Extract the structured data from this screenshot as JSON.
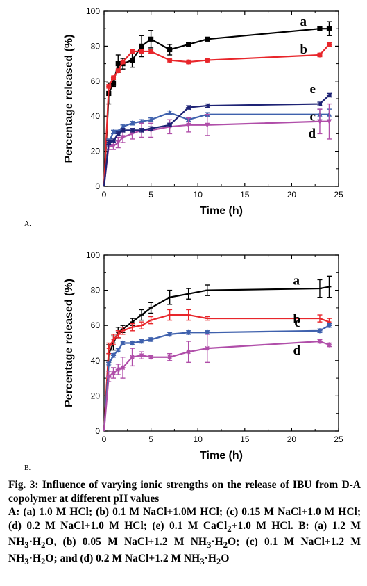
{
  "chart_data": [
    {
      "panel": "A.",
      "type": "line",
      "xlabel": "Time (h)",
      "ylabel": "Percentage released (%)",
      "xlim": [
        0,
        25
      ],
      "ylim": [
        0,
        100
      ],
      "xticks": [
        "0",
        "5",
        "10",
        "15",
        "20",
        "25"
      ],
      "yticks": [
        "0",
        "20",
        "40",
        "60",
        "80",
        "100"
      ],
      "grid": false,
      "legend": "inline",
      "series": [
        {
          "name": "a",
          "color": "#000000",
          "marker": "square",
          "x": [
            0,
            0.5,
            1,
            1.5,
            2,
            3,
            4,
            5,
            7,
            9,
            11,
            23,
            24
          ],
          "y": [
            0,
            53,
            59,
            70,
            70,
            72,
            80,
            84,
            78,
            81,
            84,
            90,
            90
          ],
          "err": [
            0,
            6,
            2,
            5,
            3,
            4,
            6,
            5,
            3,
            1,
            1,
            1,
            4
          ]
        },
        {
          "name": "b",
          "color": "#e8262b",
          "marker": "circle",
          "x": [
            0,
            0.5,
            1,
            1.5,
            2,
            3,
            4,
            5,
            7,
            9,
            11,
            23,
            24
          ],
          "y": [
            0,
            57,
            62,
            66,
            71,
            77,
            77,
            77,
            72,
            71,
            72,
            75,
            81
          ],
          "err": [
            0,
            1,
            1,
            1,
            1,
            1,
            1,
            1,
            1,
            1,
            1,
            1,
            1
          ]
        },
        {
          "name": "c",
          "color": "#3f61ad",
          "marker": "triangle-up",
          "x": [
            0,
            0.5,
            1,
            1.5,
            2,
            3,
            4,
            5,
            7,
            9,
            11,
            23,
            24
          ],
          "y": [
            0,
            25,
            31,
            31,
            34,
            36,
            37,
            38,
            42,
            38,
            41,
            41,
            41
          ],
          "err": [
            0,
            2,
            1,
            1,
            1,
            1,
            1,
            1,
            1,
            1,
            1,
            3,
            3
          ]
        },
        {
          "name": "d",
          "color": "#b04ea9",
          "marker": "triangle-down",
          "x": [
            0,
            0.5,
            1,
            1.5,
            2,
            3,
            4,
            5,
            7,
            9,
            11,
            23,
            24
          ],
          "y": [
            0,
            23,
            23,
            25,
            28,
            30,
            32,
            32,
            34,
            35,
            35,
            37,
            37
          ],
          "err": [
            0,
            2,
            2,
            3,
            3,
            3,
            4,
            4,
            4,
            4,
            6,
            7,
            10
          ]
        },
        {
          "name": "e",
          "color": "#1e2375",
          "marker": "triangle-left",
          "x": [
            0,
            0.5,
            1,
            1.5,
            2,
            3,
            4,
            5,
            7,
            9,
            11,
            23,
            24
          ],
          "y": [
            0,
            25,
            26,
            30,
            32,
            32,
            32,
            33,
            35,
            45,
            46,
            47,
            52
          ],
          "err": [
            0,
            1,
            1,
            1,
            1,
            1,
            1,
            1,
            1,
            1,
            1,
            1,
            1
          ]
        }
      ]
    },
    {
      "panel": "B.",
      "type": "line",
      "xlabel": "Time (h)",
      "ylabel": "Percentage released (%)",
      "xlim": [
        0,
        25
      ],
      "ylim": [
        0,
        100
      ],
      "xticks": [
        "0",
        "5",
        "10",
        "15",
        "20",
        "25"
      ],
      "yticks": [
        "0",
        "20",
        "40",
        "60",
        "80",
        "100"
      ],
      "grid": false,
      "legend": "inline",
      "series": [
        {
          "name": "a",
          "color": "#000000",
          "marker": "tick",
          "x": [
            0,
            0.5,
            1,
            1.5,
            2,
            3,
            4,
            5,
            7,
            9,
            11,
            23,
            24
          ],
          "y": [
            0,
            44,
            50,
            56,
            58,
            62,
            66,
            70,
            76,
            78,
            80,
            81,
            82
          ],
          "err": [
            0,
            5,
            4,
            3,
            2,
            2,
            3,
            3,
            4,
            3,
            3,
            5,
            6
          ]
        },
        {
          "name": "b",
          "color": "#e8262b",
          "marker": "tick",
          "x": [
            0,
            0.5,
            1,
            1.5,
            2,
            3,
            4,
            5,
            7,
            9,
            11,
            23,
            24
          ],
          "y": [
            0,
            47,
            52,
            55,
            57,
            59,
            60,
            63,
            66,
            66,
            64,
            64,
            62
          ],
          "err": [
            0,
            3,
            3,
            2,
            2,
            2,
            2,
            2,
            3,
            3,
            1,
            2,
            2
          ]
        },
        {
          "name": "c",
          "color": "#3f61ad",
          "marker": "star",
          "x": [
            0,
            0.5,
            1,
            1.5,
            2,
            3,
            4,
            5,
            7,
            9,
            11,
            23,
            24
          ],
          "y": [
            0,
            38,
            43,
            46,
            50,
            50,
            51,
            52,
            55,
            56,
            56,
            57,
            60
          ],
          "err": [
            0,
            1,
            1,
            1,
            1,
            1,
            1,
            1,
            1,
            1,
            1,
            1,
            1
          ]
        },
        {
          "name": "d",
          "color": "#b04ea9",
          "marker": "star",
          "x": [
            0,
            0.5,
            1,
            1.5,
            2,
            3,
            4,
            5,
            7,
            9,
            11,
            23,
            24
          ],
          "y": [
            0,
            31,
            33,
            35,
            36,
            42,
            43,
            42,
            42,
            45,
            47,
            51,
            49
          ],
          "err": [
            0,
            3,
            3,
            3,
            6,
            5,
            2,
            1,
            2,
            6,
            8,
            1,
            1
          ]
        }
      ]
    }
  ],
  "caption": {
    "title": "Fig. 3: Influence of varying ionic strengths on the release of IBU from D-A copolymer at different pH values",
    "line_a": "A: (a) 1.0 M HCl; (b) 0.1 M NaCl+1.0M HCl; (c) 0.15 M NaCl+1.0 M HCl; (d) 0.2 M NaCl+1.0 M HCl; (e) 0.1 M",
    "line_a2": "CaCl",
    "line_a2_sub": "2",
    "line_a2_rest": "+1.0 M HCl. B: (a) 1.2 M NH",
    "line_a2_sub2": "3",
    "line_a2_rest2": "·H",
    "line_a2_sub3": "2",
    "line_a2_rest3": "O, (b) 0.05 M NaCl+1.2",
    "line_b1": "M NH",
    "line_b1_sub": "3",
    "line_b1_rest": "·H",
    "line_b1_sub2": "2",
    "line_b1_rest2": "O; (c) 0.1 M NaCl+1.2 M NH",
    "line_b1_sub3": "3",
    "line_b1_rest3": "·H",
    "line_b1_sub4": "2",
    "line_b1_rest4": "O; and (d) 0.2 M",
    "line_b2": "NaCl+1.2 M NH",
    "line_b2_sub": "3",
    "line_b2_rest": "·H",
    "line_b2_sub2": "2",
    "line_b2_rest2": "O"
  }
}
